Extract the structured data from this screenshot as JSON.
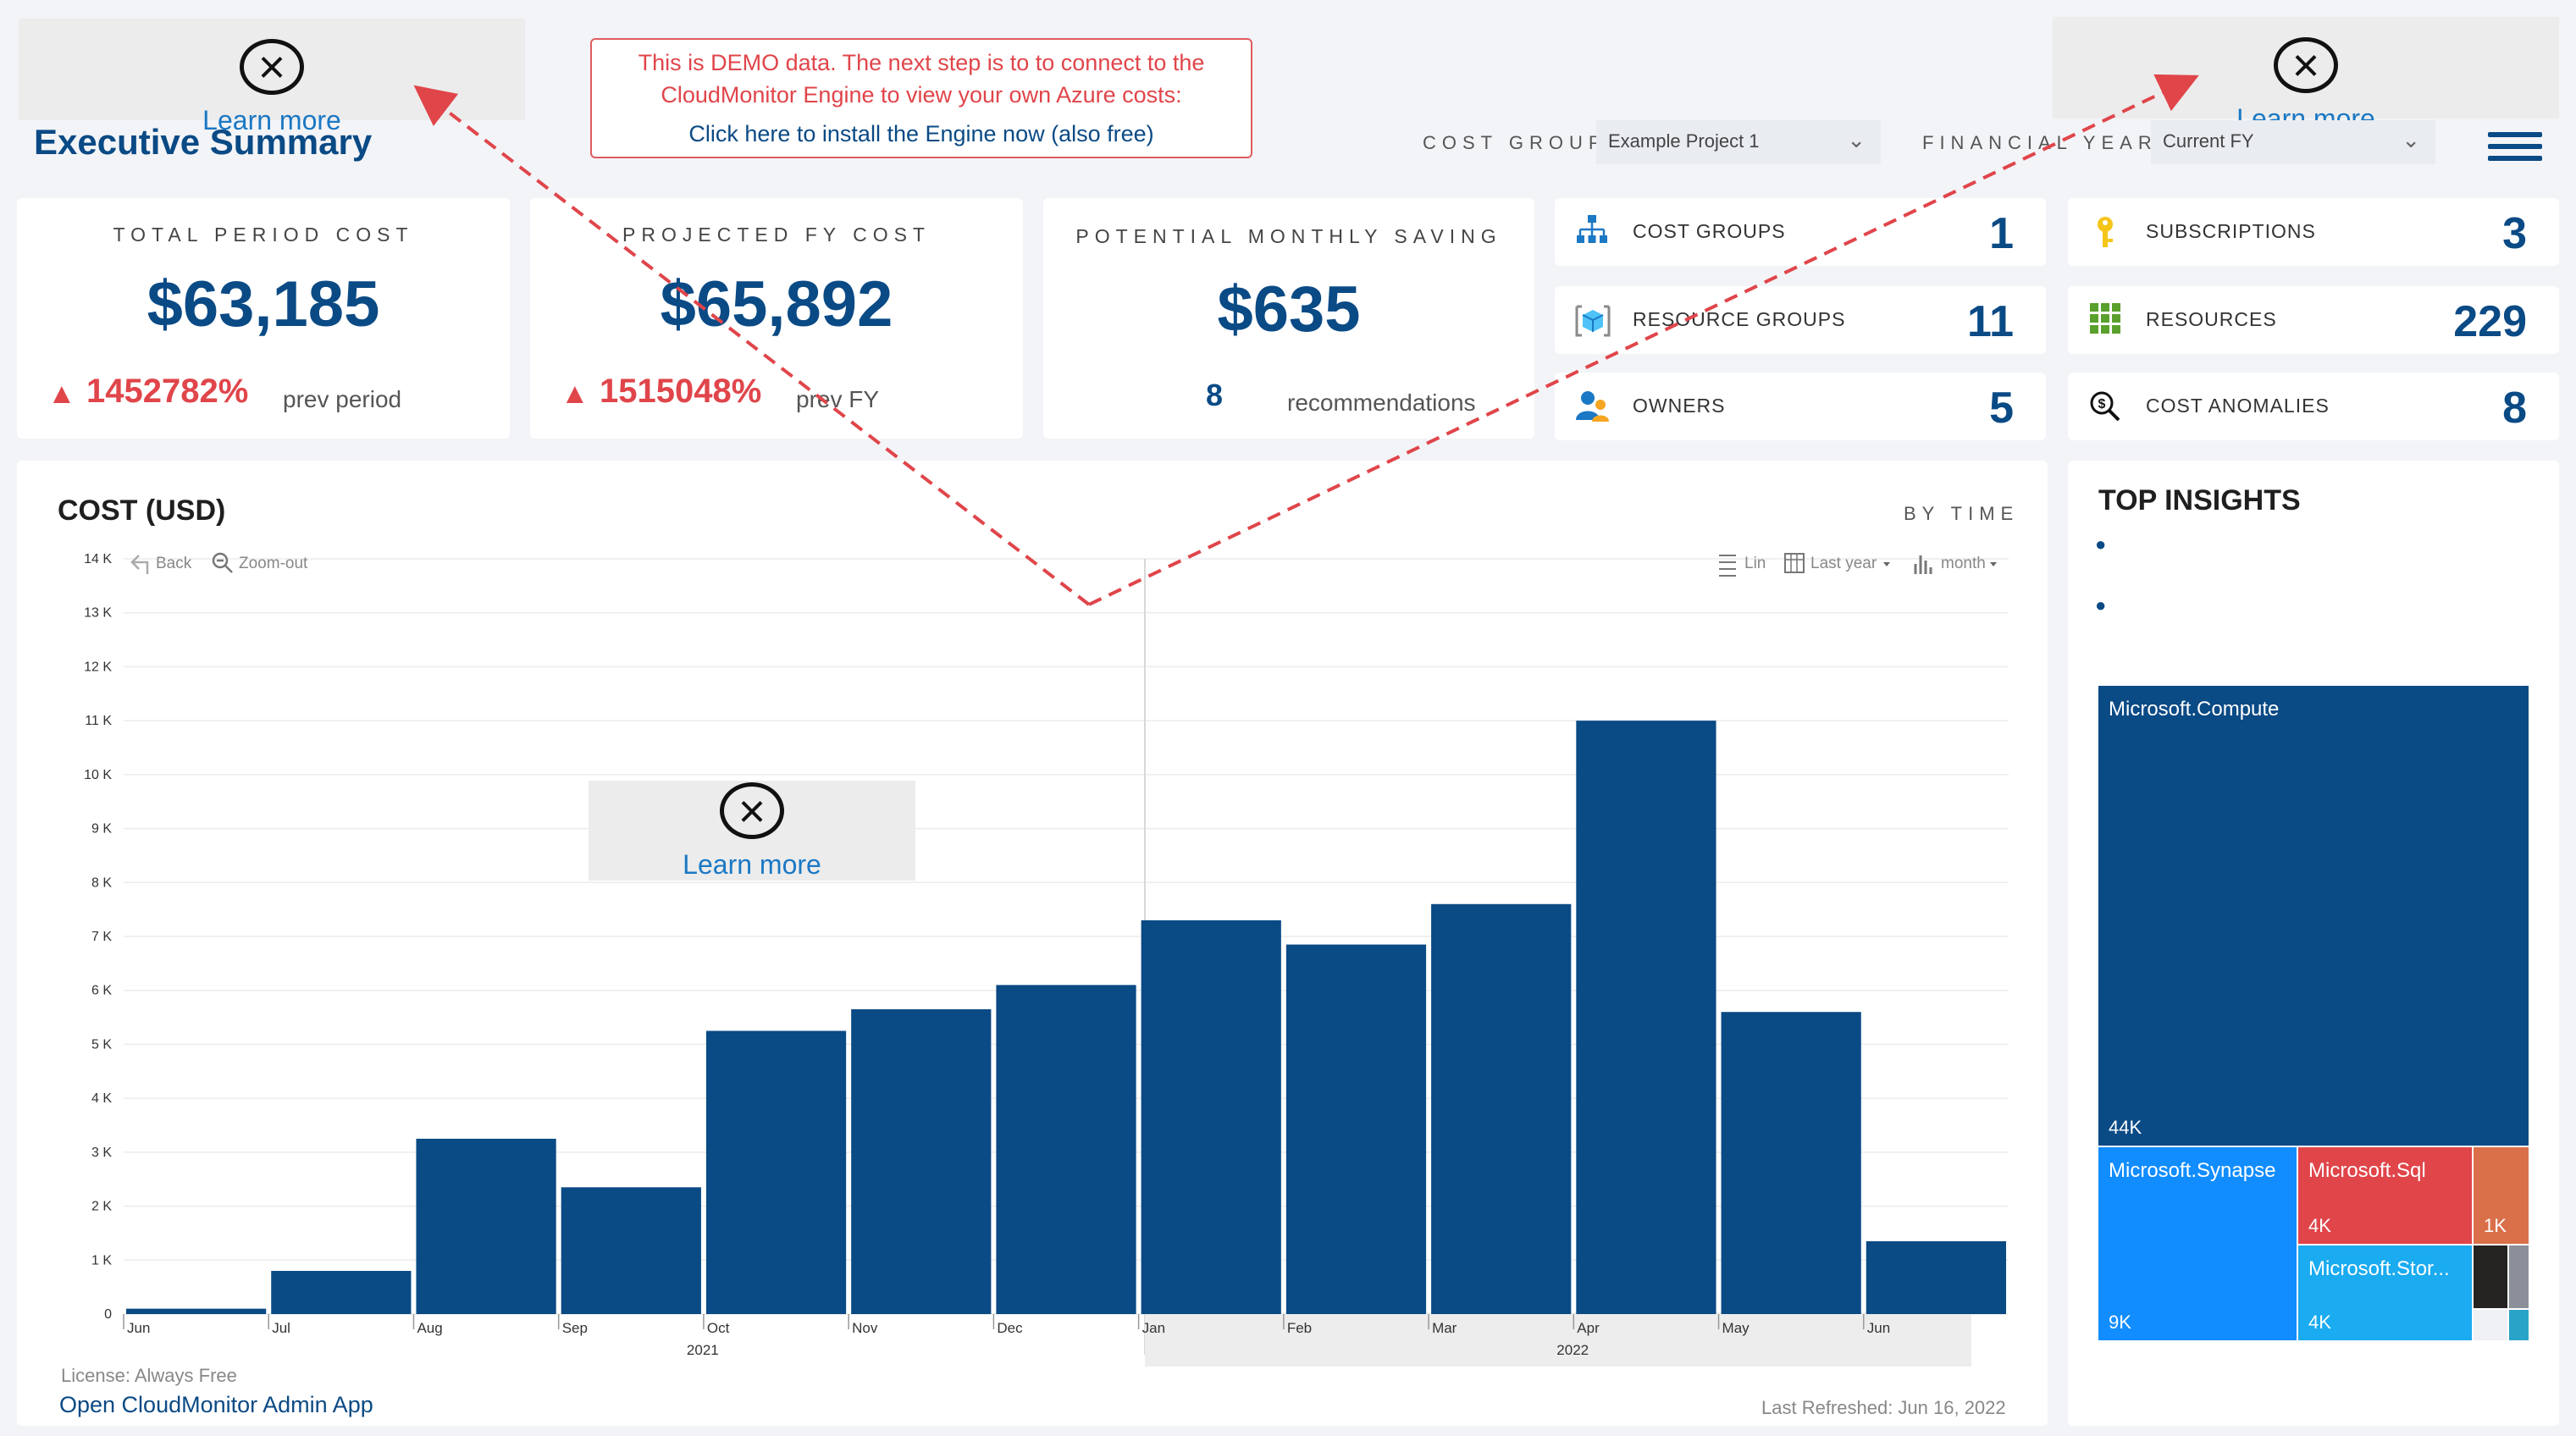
{
  "header": {
    "title": "Executive Summary",
    "demo_line1": "This is DEMO data. The next step is to to connect to the",
    "demo_line2": "CloudMonitor Engine to view your own Azure costs:",
    "demo_link": "Click here to install the Engine now (also free)",
    "learn_more": "Learn more",
    "cost_group_label": "COST GROUP",
    "cost_group_value": "Example Project 1",
    "financial_year_label": "FINANCIAL YEAR",
    "financial_year_value": "Current FY"
  },
  "kpis": {
    "total": {
      "label": "TOTAL PERIOD COST",
      "value": "$63,185",
      "change": "1452782%",
      "sub": "prev period"
    },
    "projected": {
      "label": "PROJECTED FY COST",
      "value": "$65,892",
      "change": "1515048%",
      "sub": "prev FY"
    },
    "saving": {
      "label": "POTENTIAL MONTHLY SAVING",
      "value": "$635",
      "count": "8",
      "sub": "recommendations"
    }
  },
  "stats": [
    {
      "label": "COST GROUPS",
      "value": "1",
      "icon": "org-chart-icon"
    },
    {
      "label": "SUBSCRIPTIONS",
      "value": "3",
      "icon": "key-icon"
    },
    {
      "label": "RESOURCE GROUPS",
      "value": "11",
      "icon": "cube-icon"
    },
    {
      "label": "RESOURCES",
      "value": "229",
      "icon": "grid-icon"
    },
    {
      "label": "OWNERS",
      "value": "5",
      "icon": "people-icon"
    },
    {
      "label": "COST ANOMALIES",
      "value": "8",
      "icon": "dollar-search-icon"
    }
  ],
  "chart_panel": {
    "title": "COST (USD)",
    "by_time": "BY TIME",
    "back": "Back",
    "zoom_out": "Zoom-out",
    "lin": "Lin",
    "range": "Last year",
    "interval": "month",
    "license": "License: Always Free",
    "admin_link": "Open CloudMonitor Admin App",
    "refreshed": "Last Refreshed: Jun 16, 2022"
  },
  "chart_data": {
    "type": "bar",
    "title": "COST (USD)",
    "categories": [
      "Jun",
      "Jul",
      "Aug",
      "Sep",
      "Oct",
      "Nov",
      "Dec",
      "Jan",
      "Feb",
      "Mar",
      "Apr",
      "May",
      "Jun"
    ],
    "year_labels": [
      "2021",
      "2022"
    ],
    "values": [
      100,
      800,
      3250,
      2350,
      5250,
      5650,
      6100,
      7300,
      6850,
      7600,
      11000,
      5600,
      1350
    ],
    "ylim": [
      0,
      14000
    ],
    "yticks": [
      "0",
      "1 K",
      "2 K",
      "3 K",
      "4 K",
      "5 K",
      "6 K",
      "7 K",
      "8 K",
      "9 K",
      "10 K",
      "11 K",
      "12 K",
      "13 K",
      "14 K"
    ],
    "grid": true,
    "colors": {
      "bar": "#0a4a85"
    }
  },
  "insights": {
    "title": "TOP INSIGHTS",
    "treemap": [
      {
        "name": "Microsoft.Compute",
        "value": "44K",
        "color": "#0a4a85"
      },
      {
        "name": "Microsoft.Synapse",
        "value": "9K",
        "color": "#118dff"
      },
      {
        "name": "Microsoft.Sql",
        "value": "4K",
        "color": "#e0454a"
      },
      {
        "name": "Microsoft.Stor...",
        "value": "4K",
        "color": "#1aabf0"
      },
      {
        "name": "",
        "value": "1K",
        "color": "#d9704a"
      }
    ]
  }
}
